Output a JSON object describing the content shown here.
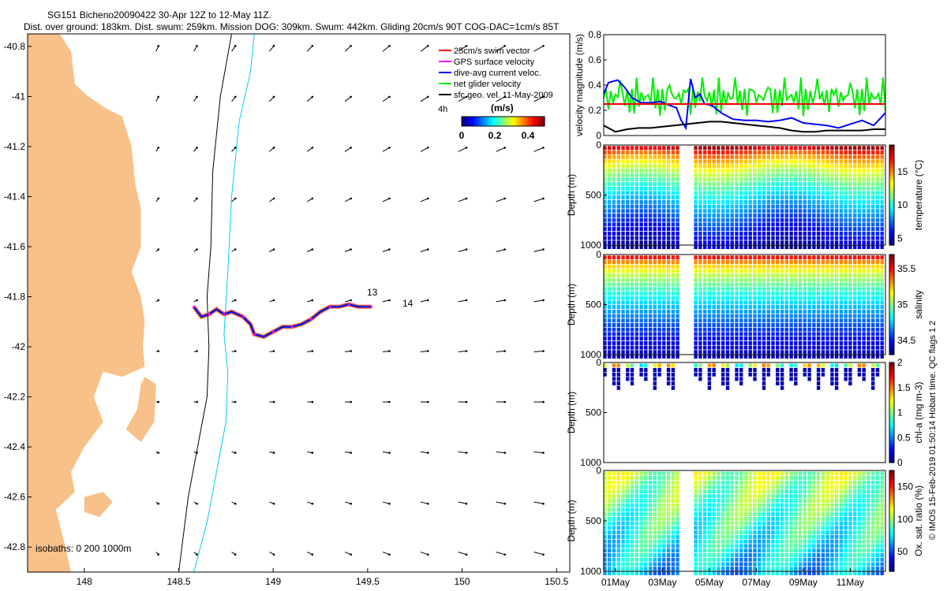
{
  "titles": {
    "line1": "SG151 Bicheno20090422 30-Apr 12Z to 12-May 11Z.",
    "line2": "Dist. over ground: 183km. Dist. swum: 259km. Mission DOG: 309km. Swum: 442km. Gliding 20cm/s 90T COG-DAC=1cm/s 85T"
  },
  "credit": "© IMOS 15-Feb-2019 01:50:14 Hobart time. QC flags 1  2",
  "colors": {
    "land": "#f7c189",
    "swim": "#ff0000",
    "gps": "#ff00ff",
    "dive_avg": "#0000ff",
    "net_glider": "#00ee00",
    "sfc_geo": "#000000",
    "isobath_200": "#000000",
    "isobath_1000": "#00ccff"
  },
  "chart_data": [
    {
      "type": "map",
      "name": "track-map",
      "xlim": [
        147.7,
        150.57
      ],
      "ylim": [
        -42.9,
        -40.75
      ],
      "x_ticks": [
        148,
        148.5,
        149,
        149.5,
        150,
        150.5
      ],
      "x_tick_labels": [
        "148",
        "148.5",
        "149",
        "149.5",
        "150",
        "150.5"
      ],
      "y_ticks": [
        -40.8,
        -41,
        -41.2,
        -41.4,
        -41.6,
        -41.8,
        -42,
        -42.2,
        -42.4,
        -42.6,
        -42.8
      ],
      "y_tick_labels": [
        "-40.8",
        "-41",
        "-41.2",
        "-41.4",
        "-41.6",
        "-41.8",
        "-42",
        "-42.2",
        "-42.4",
        "-42.6",
        "-42.8"
      ],
      "legend": {
        "position": "top-right",
        "entries": [
          "25cm/s swim vector",
          "GPS surface velocity",
          "dive-avg current veloc.",
          "net glider velocity",
          "sfc geo. vel. 11-May-2009"
        ],
        "extra": "4h"
      },
      "colorbar": {
        "label": "(m/s)",
        "ticks": [
          "0",
          "0.2",
          "0.4"
        ],
        "range": [
          0,
          0.5
        ]
      },
      "annotations": [
        "isobaths: 0  200  1000m",
        "13",
        "14"
      ],
      "coast": [
        [
          147.7,
          -40.75
        ],
        [
          147.87,
          -40.75
        ],
        [
          147.93,
          -40.82
        ],
        [
          147.95,
          -40.95
        ],
        [
          148.02,
          -41.0
        ],
        [
          148.12,
          -41.05
        ],
        [
          148.2,
          -41.08
        ],
        [
          148.25,
          -41.2
        ],
        [
          148.27,
          -41.35
        ],
        [
          148.3,
          -41.45
        ],
        [
          148.3,
          -41.6
        ],
        [
          148.25,
          -41.7
        ],
        [
          148.3,
          -41.8
        ],
        [
          148.32,
          -41.9
        ],
        [
          148.31,
          -42.0
        ],
        [
          148.32,
          -42.08
        ],
        [
          148.2,
          -42.12
        ],
        [
          148.1,
          -42.1
        ],
        [
          148.05,
          -42.2
        ],
        [
          148.1,
          -42.3
        ],
        [
          148.0,
          -42.4
        ],
        [
          147.93,
          -42.5
        ],
        [
          147.95,
          -42.58
        ],
        [
          147.85,
          -42.65
        ],
        [
          147.9,
          -42.8
        ],
        [
          147.93,
          -42.9
        ],
        [
          147.7,
          -42.9
        ]
      ],
      "islands": [
        [
          [
            148.0,
            -42.1
          ],
          [
            148.05,
            -42.0
          ],
          [
            148.1,
            -42.05
          ],
          [
            148.05,
            -42.15
          ]
        ],
        [
          [
            148.32,
            -42.12
          ],
          [
            148.38,
            -42.15
          ],
          [
            148.37,
            -42.3
          ],
          [
            148.3,
            -42.38
          ],
          [
            148.22,
            -42.33
          ],
          [
            148.28,
            -42.25
          ],
          [
            148.3,
            -42.15
          ]
        ],
        [
          [
            148.0,
            -42.6
          ],
          [
            148.1,
            -42.58
          ],
          [
            148.15,
            -42.62
          ],
          [
            148.08,
            -42.68
          ],
          [
            148.0,
            -42.66
          ]
        ]
      ],
      "isobath_200": [
        [
          148.78,
          -40.75
        ],
        [
          148.72,
          -41.0
        ],
        [
          148.68,
          -41.3
        ],
        [
          148.67,
          -41.6
        ],
        [
          148.65,
          -41.8
        ],
        [
          148.66,
          -42.0
        ],
        [
          148.65,
          -42.2
        ],
        [
          148.6,
          -42.4
        ],
        [
          148.55,
          -42.6
        ],
        [
          148.5,
          -42.9
        ]
      ],
      "isobath_1000": [
        [
          148.9,
          -40.75
        ],
        [
          148.88,
          -40.9
        ],
        [
          148.82,
          -41.1
        ],
        [
          148.78,
          -41.4
        ],
        [
          148.76,
          -41.7
        ],
        [
          148.74,
          -41.95
        ],
        [
          148.76,
          -42.1
        ],
        [
          148.75,
          -42.3
        ],
        [
          148.7,
          -42.5
        ],
        [
          148.65,
          -42.7
        ],
        [
          148.58,
          -42.9
        ]
      ],
      "track": [
        [
          148.58,
          -41.84
        ],
        [
          148.62,
          -41.88
        ],
        [
          148.66,
          -41.87
        ],
        [
          148.7,
          -41.85
        ],
        [
          148.74,
          -41.87
        ],
        [
          148.78,
          -41.86
        ],
        [
          148.84,
          -41.88
        ],
        [
          148.88,
          -41.91
        ],
        [
          148.9,
          -41.95
        ],
        [
          148.95,
          -41.96
        ],
        [
          149.0,
          -41.94
        ],
        [
          149.05,
          -41.92
        ],
        [
          149.1,
          -41.92
        ],
        [
          149.15,
          -41.91
        ],
        [
          149.2,
          -41.89
        ],
        [
          149.25,
          -41.86
        ],
        [
          149.3,
          -41.84
        ],
        [
          149.35,
          -41.84
        ],
        [
          149.4,
          -41.83
        ],
        [
          149.45,
          -41.84
        ],
        [
          149.52,
          -41.84
        ]
      ]
    },
    {
      "type": "line",
      "name": "velocity-panel",
      "ylabel": "velocity magnitude (m/s)",
      "ylim": [
        0,
        0.8
      ],
      "y_ticks": [
        "0",
        "0.2",
        "0.4",
        "0.6",
        "0.8"
      ],
      "xlim": [
        0,
        12
      ],
      "series": [
        {
          "values_x": [
            0,
            0.2,
            0.4,
            0.6,
            0.9,
            1.2,
            1.6,
            2.0,
            2.4,
            2.8,
            3.1,
            3.3,
            3.5,
            3.7,
            3.9,
            4.1,
            4.3,
            4.6,
            5.0,
            5.5,
            6.0,
            6.5,
            7.0,
            7.5,
            8.0,
            8.5,
            9.0,
            9.5,
            10.0,
            10.5,
            11.0,
            11.5,
            12.0
          ],
          "values_y": [
            0.33,
            0.42,
            0.43,
            0.44,
            0.38,
            0.3,
            0.26,
            0.26,
            0.27,
            0.24,
            0.22,
            0.12,
            0.06,
            0.45,
            0.3,
            0.33,
            0.25,
            0.24,
            0.18,
            0.13,
            0.12,
            0.12,
            0.11,
            0.12,
            0.14,
            0.1,
            0.09,
            0.08,
            0.06,
            0.09,
            0.12,
            0.08,
            0.18
          ]
        },
        {
          "values_x": [
            0,
            0.5,
            1.0,
            1.5,
            2.0,
            2.5,
            3.0,
            3.5,
            4.0,
            4.5,
            5.0,
            5.5,
            6.0,
            6.5,
            7.0,
            7.5,
            8.0,
            8.5,
            9.0,
            9.5,
            10.0,
            10.5,
            11.0,
            11.5,
            12.0
          ],
          "values_y": [
            0.08,
            0.03,
            0.05,
            0.06,
            0.06,
            0.07,
            0.08,
            0.09,
            0.1,
            0.11,
            0.11,
            0.1,
            0.09,
            0.08,
            0.07,
            0.06,
            0.04,
            0.03,
            0.03,
            0.04,
            0.04,
            0.04,
            0.04,
            0.05,
            0.05
          ]
        },
        {
          "values_x": [
            0,
            12
          ],
          "values_y": [
            0.25,
            0.25
          ]
        }
      ]
    },
    {
      "type": "heatmap",
      "name": "temperature-section",
      "ylabel": "Depth (m)",
      "ylim": [
        1000,
        0
      ],
      "y_ticks": [
        "0",
        "500",
        "1000"
      ],
      "colorbar_label": "temperature (°C)",
      "colorbar_ticks": [
        "5",
        "10",
        "15"
      ],
      "crange": [
        4,
        19
      ]
    },
    {
      "type": "heatmap",
      "name": "salinity-section",
      "ylabel": "Depth (m)",
      "ylim": [
        1000,
        0
      ],
      "y_ticks": [
        "0",
        "500",
        "1000"
      ],
      "colorbar_label": "salinity",
      "colorbar_ticks": [
        "34.5",
        "35",
        "35.5"
      ],
      "crange": [
        34.3,
        35.7
      ]
    },
    {
      "type": "heatmap",
      "name": "chla-section",
      "ylabel": "Depth (m)",
      "ylim": [
        1000,
        0
      ],
      "y_ticks": [
        "0",
        "500",
        "1000"
      ],
      "colorbar_label": "chl-a (mg m-3)",
      "colorbar_ticks": [
        "0",
        "0.5",
        "1",
        "1.5",
        "2"
      ],
      "crange": [
        0,
        2
      ]
    },
    {
      "type": "heatmap",
      "name": "oxygen-section",
      "ylabel": "Depth (m)",
      "ylim": [
        1000,
        0
      ],
      "y_ticks": [
        "0",
        "500",
        "1000"
      ],
      "colorbar_label": "Ox. sat. ratio (%)",
      "colorbar_ticks": [
        "50",
        "100",
        "150"
      ],
      "crange": [
        20,
        175
      ],
      "x_tick_labels": [
        "01May",
        "03May",
        "05May",
        "07May",
        "09May",
        "11May"
      ]
    }
  ]
}
